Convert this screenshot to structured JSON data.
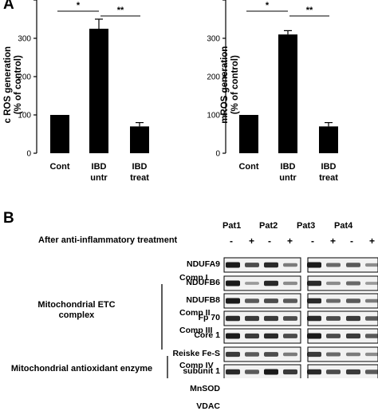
{
  "panel_a": {
    "letter": "A",
    "chart_data": [
      {
        "type": "bar",
        "ylabel": "c ROS generation\n(% of control)",
        "ylim": [
          0,
          400
        ],
        "yticks": [
          0,
          100,
          200,
          300
        ],
        "categories": [
          "Cont",
          "IBD\nuntr",
          "IBD\ntreat"
        ],
        "values": [
          100,
          325,
          70
        ],
        "errors": [
          0,
          25,
          10
        ],
        "sig_labels": [
          "*",
          "**"
        ],
        "bar_color": "#000000"
      },
      {
        "type": "bar",
        "ylabel": "mROS generation\n(% of control)",
        "ylim": [
          0,
          400
        ],
        "yticks": [
          0,
          100,
          200,
          300
        ],
        "categories": [
          "Cont",
          "IBD\nuntr",
          "IBD\ntreat"
        ],
        "values": [
          100,
          310,
          70
        ],
        "errors": [
          0,
          10,
          10
        ],
        "sig_labels": [
          "*",
          "**"
        ],
        "bar_color": "#000000"
      }
    ]
  },
  "panel_b": {
    "letter": "B",
    "patients": [
      "Pat1",
      "Pat2",
      "Pat3",
      "Pat4"
    ],
    "treatment_label": "After anti-inflammatory treatment",
    "treatment_signs": [
      "-",
      "+",
      "-",
      "+",
      "-",
      "+",
      "-",
      "+"
    ],
    "group_etc": "Mitochondrial ETC\ncomplex",
    "group_antiox": "Mitochondrial antioxidant enzyme",
    "complexes": [
      "Comp I",
      "Comp II",
      "Comp III",
      "Comp IV"
    ],
    "proteins": [
      "NDUFA9",
      "NDUFB6",
      "NDUFB8",
      "Fp 70",
      "Core 1",
      "Reiske Fe-S",
      "subunit 1",
      "MnSOD",
      "VDAC"
    ],
    "band_color": "#1a1a1a"
  }
}
